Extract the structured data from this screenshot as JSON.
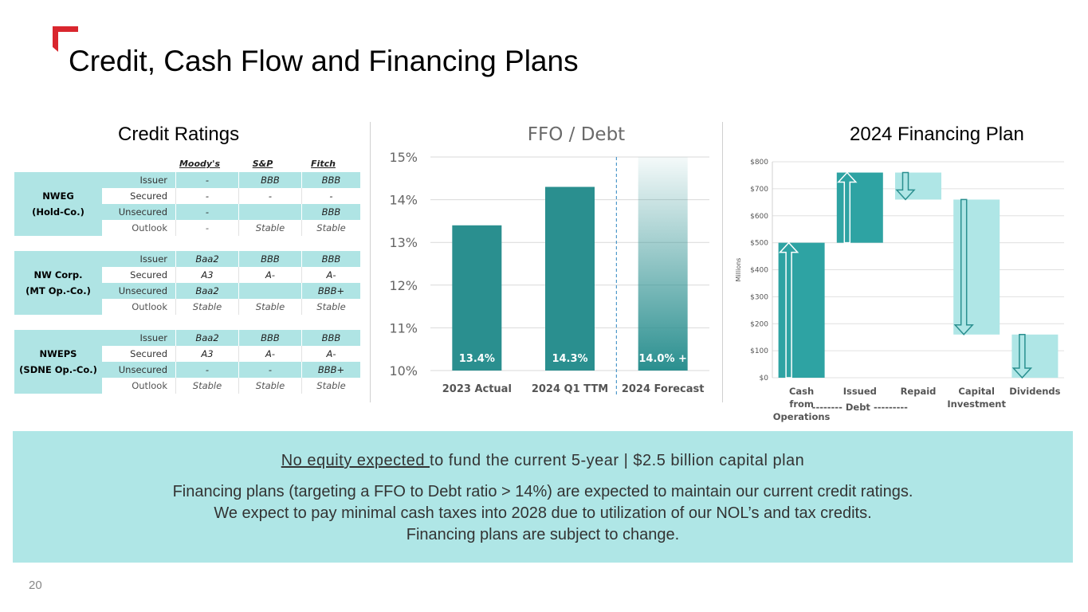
{
  "header": {
    "title": "Credit, Cash Flow and Financing Plans"
  },
  "credit_ratings": {
    "title": "Credit Ratings",
    "agencies": [
      "Moody's",
      "S&P",
      "Fitch"
    ],
    "groups": [
      {
        "name_line1": "NWEG",
        "name_line2": "(Hold-Co.)",
        "rows": [
          {
            "label": "Issuer",
            "values": [
              "-",
              "BBB",
              "BBB"
            ]
          },
          {
            "label": "Secured",
            "values": [
              "-",
              "-",
              "-"
            ]
          },
          {
            "label": "Unsecured",
            "values": [
              "-",
              "",
              "BBB"
            ]
          },
          {
            "label": "Outlook",
            "values": [
              "-",
              "Stable",
              "Stable"
            ]
          }
        ]
      },
      {
        "name_line1": "NW Corp.",
        "name_line2": "(MT Op.-Co.)",
        "rows": [
          {
            "label": "Issuer",
            "values": [
              "Baa2",
              "BBB",
              "BBB"
            ]
          },
          {
            "label": "Secured",
            "values": [
              "A3",
              "A-",
              "A-"
            ]
          },
          {
            "label": "Unsecured",
            "values": [
              "Baa2",
              "",
              "BBB+"
            ]
          },
          {
            "label": "Outlook",
            "values": [
              "Stable",
              "Stable",
              "Stable"
            ]
          }
        ]
      },
      {
        "name_line1": "NWEPS",
        "name_line2": "(SDNE Op.-Co.)",
        "rows": [
          {
            "label": "Issuer",
            "values": [
              "Baa2",
              "BBB",
              "BBB"
            ]
          },
          {
            "label": "Secured",
            "values": [
              "A3",
              "A-",
              "A-"
            ]
          },
          {
            "label": "Unsecured",
            "values": [
              "-",
              "-",
              "BBB+"
            ]
          },
          {
            "label": "Outlook",
            "values": [
              "Stable",
              "Stable",
              "Stable"
            ]
          }
        ]
      }
    ]
  },
  "chart_data": [
    {
      "type": "bar",
      "title": "FFO / Debt",
      "categories": [
        "2023 Actual",
        "2024 Q1 TTM",
        "2024 Forecast"
      ],
      "values": [
        13.4,
        14.3,
        14.0
      ],
      "data_labels": [
        "13.4%",
        "14.3%",
        "14.0% +"
      ],
      "ylim": [
        10,
        15
      ],
      "yticks": [
        "10%",
        "11%",
        "12%",
        "13%",
        "14%",
        "15%"
      ],
      "grid": true,
      "bar_color": "#2a8f8f"
    },
    {
      "type": "waterfall",
      "title": "2024 Financing Plan",
      "ylabel": "Millions",
      "ylim": [
        0,
        800
      ],
      "yticks": [
        "$0",
        "$100",
        "$200",
        "$300",
        "$400",
        "$500",
        "$600",
        "$700",
        "$800"
      ],
      "categories": [
        "Cash from Operations",
        "Issued",
        "Repaid",
        "Capital Investment",
        "Dividends"
      ],
      "category_lines": [
        [
          "Cash",
          "from",
          "Operations"
        ],
        [
          "Issued"
        ],
        [
          "Repaid"
        ],
        [
          "Capital",
          "Investment"
        ],
        [
          "Dividends"
        ]
      ],
      "bars": [
        {
          "start": 0,
          "end": 500,
          "direction": "up",
          "color": "#2ea3a3"
        },
        {
          "start": 500,
          "end": 760,
          "direction": "up",
          "color": "#2ea3a3"
        },
        {
          "start": 760,
          "end": 660,
          "direction": "down",
          "color": "#afe6e6"
        },
        {
          "start": 660,
          "end": 160,
          "direction": "down",
          "color": "#afe6e6"
        },
        {
          "start": 160,
          "end": 0,
          "direction": "down",
          "color": "#afe6e6"
        }
      ],
      "group_label": "-------- Debt ---------"
    }
  ],
  "banner": {
    "lead_underlined": "No equity expected ",
    "lead_rest": "to fund the current 5-year | $2.5 billion capital plan",
    "line1": "Financing plans (targeting a FFO to Debt ratio > 14%) are expected to maintain our current credit ratings.",
    "line2": "We expect to pay minimal cash taxes into 2028 due to utilization of our NOL’s and tax credits.",
    "line3": "Financing plans are subject to change."
  },
  "footer": {
    "page_number": "20"
  },
  "colors": {
    "teal_dark": "#2a8f8f",
    "teal_light": "#afe6e6",
    "brand_red": "#d9262e"
  }
}
